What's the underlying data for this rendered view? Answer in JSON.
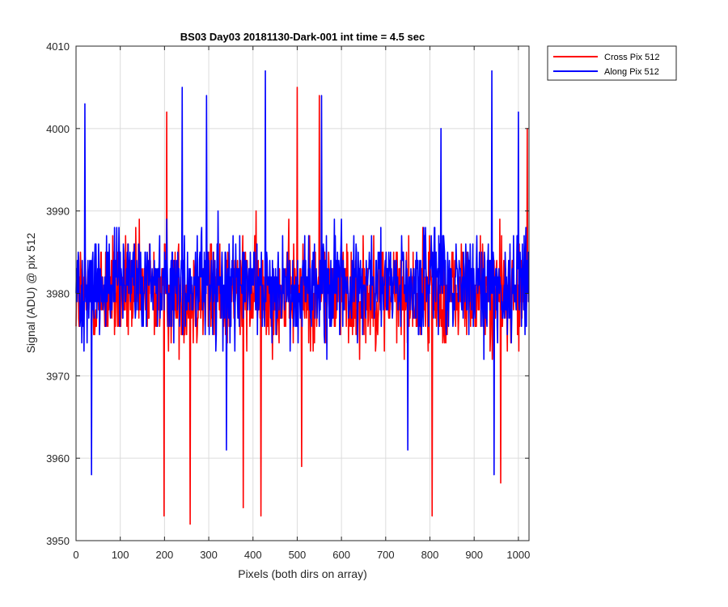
{
  "chart_data": {
    "type": "line",
    "title": "BS03 Day03 20181130-Dark-001 int time = 4.5 sec",
    "xlabel": "Pixels (both dirs on array)",
    "ylabel": "Signal (ADU) @ pix 512",
    "xlim": [
      0,
      1024
    ],
    "ylim": [
      3950,
      4010
    ],
    "xticks": [
      0,
      100,
      200,
      300,
      400,
      500,
      600,
      700,
      800,
      900,
      1000
    ],
    "yticks": [
      3950,
      3960,
      3970,
      3980,
      3990,
      4000,
      4010
    ],
    "grid": true,
    "legend_position": "outside-top-right",
    "series": [
      {
        "name": "Cross Pix 512",
        "color": "#ff0000",
        "mean": 3980,
        "extremes": [
          {
            "x": 199,
            "y": 3953
          },
          {
            "x": 205,
            "y": 4002
          },
          {
            "x": 258,
            "y": 3952
          },
          {
            "x": 378,
            "y": 3954
          },
          {
            "x": 418,
            "y": 3953
          },
          {
            "x": 500,
            "y": 4005
          },
          {
            "x": 510,
            "y": 3959
          },
          {
            "x": 550,
            "y": 4004
          },
          {
            "x": 805,
            "y": 3953
          },
          {
            "x": 960,
            "y": 3957
          },
          {
            "x": 1020,
            "y": 4000
          }
        ]
      },
      {
        "name": "Along Pix 512",
        "color": "#0000ff",
        "mean": 3981,
        "extremes": [
          {
            "x": 20,
            "y": 4003
          },
          {
            "x": 35,
            "y": 3958
          },
          {
            "x": 240,
            "y": 4005
          },
          {
            "x": 295,
            "y": 4004
          },
          {
            "x": 340,
            "y": 3961
          },
          {
            "x": 428,
            "y": 4007
          },
          {
            "x": 555,
            "y": 4004
          },
          {
            "x": 750,
            "y": 3961
          },
          {
            "x": 825,
            "y": 4000
          },
          {
            "x": 940,
            "y": 4007
          },
          {
            "x": 945,
            "y": 3958
          },
          {
            "x": 1000,
            "y": 4002
          }
        ]
      }
    ]
  }
}
